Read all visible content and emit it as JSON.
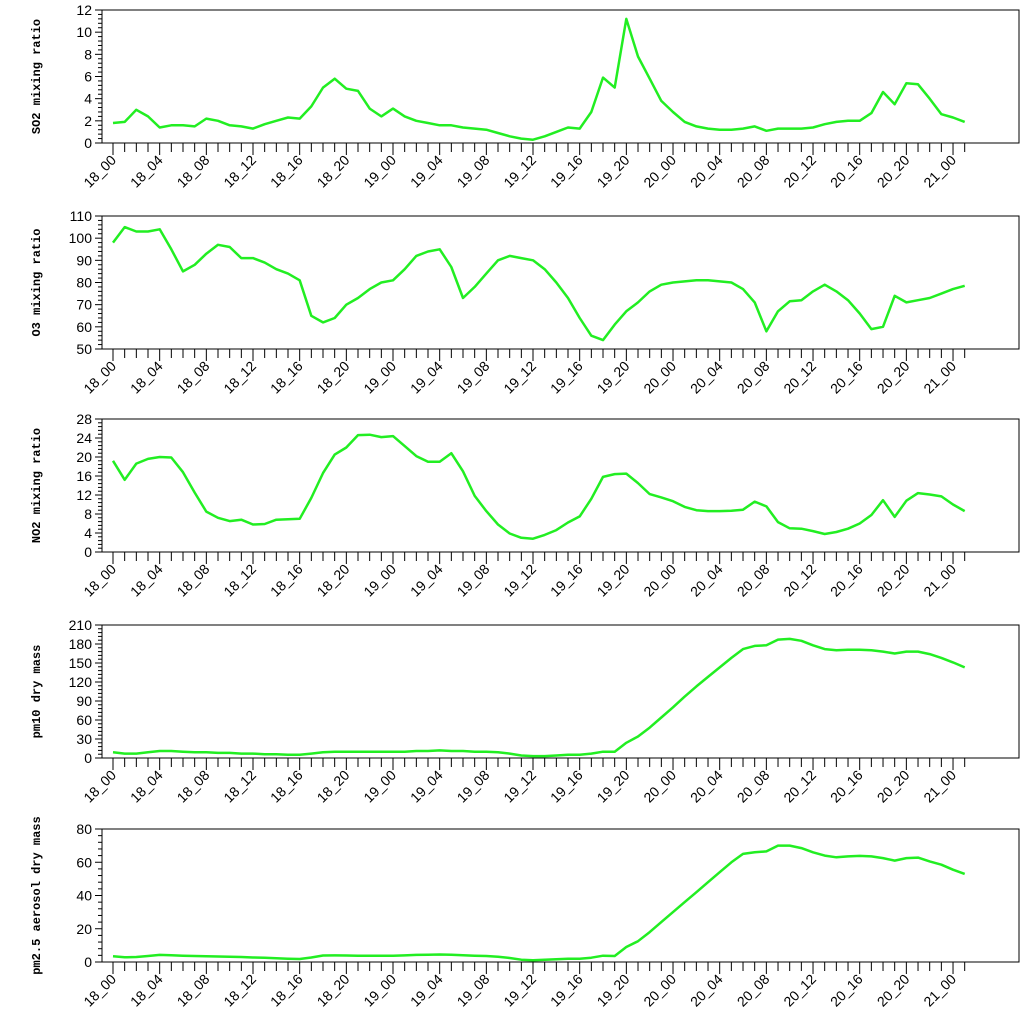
{
  "line_color": "#22ee22",
  "chart_data": [
    {
      "type": "line",
      "ylabel": "SO2 mixing ratio",
      "ylim": [
        0,
        12
      ],
      "yticks": [
        0,
        2,
        4,
        6,
        8,
        10,
        12
      ],
      "ytick_labels": [
        "0",
        "2",
        "4",
        "6",
        "8",
        "10",
        "12"
      ],
      "xtick_labels": [
        "18_00",
        "18_04",
        "18_08",
        "18_12",
        "18_16",
        "18_20",
        "19_00",
        "19_04",
        "19_08",
        "19_12",
        "19_16",
        "19_20",
        "20_00",
        "20_04",
        "20_08",
        "20_12",
        "20_16",
        "20_20",
        "21_00"
      ],
      "values": [
        1.8,
        1.9,
        3.0,
        2.4,
        1.4,
        1.6,
        1.6,
        1.5,
        2.2,
        2.0,
        1.6,
        1.5,
        1.3,
        1.7,
        2.0,
        2.3,
        2.2,
        3.3,
        5.0,
        5.8,
        4.9,
        4.7,
        3.1,
        2.4,
        3.1,
        2.4,
        2.0,
        1.8,
        1.6,
        1.6,
        1.4,
        1.3,
        1.2,
        0.9,
        0.6,
        0.4,
        0.3,
        0.6,
        1.0,
        1.4,
        1.3,
        2.8,
        5.9,
        5.0,
        11.2,
        7.8,
        5.8,
        3.8,
        2.8,
        1.9,
        1.5,
        1.3,
        1.2,
        1.2,
        1.3,
        1.5,
        1.1,
        1.3,
        1.3,
        1.3,
        1.4,
        1.7,
        1.9,
        2.0,
        2.0,
        2.7,
        4.6,
        3.5,
        5.4,
        5.3,
        4.0,
        2.6,
        2.3,
        1.9
      ]
    },
    {
      "type": "line",
      "ylabel": "O3 mixing ratio",
      "ylim": [
        50,
        110
      ],
      "yticks": [
        50,
        60,
        70,
        80,
        90,
        100,
        110
      ],
      "ytick_labels": [
        "50",
        "60",
        "70",
        "80",
        "90",
        "100",
        "110"
      ],
      "xtick_labels": [
        "18_00",
        "18_04",
        "18_08",
        "18_12",
        "18_16",
        "18_20",
        "19_00",
        "19_04",
        "19_08",
        "19_12",
        "19_16",
        "19_20",
        "20_00",
        "20_04",
        "20_08",
        "20_12",
        "20_16",
        "20_20",
        "21_00"
      ],
      "values": [
        98,
        105,
        103,
        103,
        104,
        95,
        85,
        88,
        93,
        97,
        96,
        91,
        91,
        89,
        86,
        84,
        81,
        65,
        62,
        64,
        70,
        73,
        77,
        80,
        81,
        86,
        92,
        94,
        95,
        87,
        73,
        78,
        84,
        90,
        92,
        91,
        90,
        86,
        80,
        73,
        64,
        56,
        54,
        61,
        67,
        71,
        76,
        79,
        80,
        80.5,
        81,
        81,
        80.5,
        80,
        77,
        71,
        58,
        67,
        71.5,
        72,
        76,
        79,
        76,
        72,
        66,
        59,
        60,
        74,
        71,
        72,
        73,
        75,
        77,
        78.5
      ]
    },
    {
      "type": "line",
      "ylabel": "NO2 mixing ratio",
      "ylim": [
        0,
        28
      ],
      "yticks": [
        0,
        4,
        8,
        12,
        16,
        20,
        24,
        28
      ],
      "ytick_labels": [
        "0",
        "4",
        "8",
        "12",
        "16",
        "20",
        "24",
        "28"
      ],
      "xtick_labels": [
        "18_00",
        "18_04",
        "18_08",
        "18_12",
        "18_16",
        "18_20",
        "19_00",
        "19_04",
        "19_08",
        "19_12",
        "19_16",
        "19_20",
        "20_00",
        "20_04",
        "20_08",
        "20_12",
        "20_16",
        "20_20",
        "21_00"
      ],
      "values": [
        19.2,
        15.2,
        18.6,
        19.6,
        20.0,
        19.9,
        16.8,
        12.5,
        8.5,
        7.2,
        6.5,
        6.8,
        5.8,
        5.9,
        6.8,
        6.9,
        7.0,
        11.4,
        16.6,
        20.5,
        22.0,
        24.6,
        24.7,
        24.2,
        24.4,
        22.3,
        20.2,
        19.0,
        19.0,
        20.8,
        17.0,
        11.8,
        8.6,
        5.8,
        3.9,
        3.0,
        2.8,
        3.6,
        4.6,
        6.2,
        7.5,
        11.2,
        15.8,
        16.4,
        16.5,
        14.5,
        12.2,
        11.5,
        10.7,
        9.5,
        8.8,
        8.6,
        8.6,
        8.7,
        8.9,
        10.6,
        9.6,
        6.3,
        5.0,
        4.9,
        4.4,
        3.8,
        4.2,
        4.9,
        6.0,
        7.8,
        10.9,
        7.4,
        10.8,
        12.4,
        12.1,
        11.7,
        10.0,
        8.6
      ]
    },
    {
      "type": "line",
      "ylabel": "pm10 dry mass",
      "ylim": [
        0,
        210
      ],
      "yticks": [
        0,
        30,
        60,
        90,
        120,
        150,
        180,
        210
      ],
      "ytick_labels": [
        "0",
        "30",
        "60",
        "90",
        "120",
        "150",
        "180",
        "210"
      ],
      "xtick_labels": [
        "18_00",
        "18_04",
        "18_08",
        "18_12",
        "18_16",
        "18_20",
        "19_00",
        "19_04",
        "19_08",
        "19_12",
        "19_16",
        "19_20",
        "20_00",
        "20_04",
        "20_08",
        "20_12",
        "20_16",
        "20_20",
        "21_00"
      ],
      "values": [
        9,
        7,
        7,
        9,
        11,
        11,
        10,
        9,
        9,
        8,
        8,
        7,
        7,
        6,
        6,
        5,
        5,
        7,
        9,
        10,
        10,
        10,
        10,
        10,
        10,
        10,
        11,
        11,
        12,
        11,
        11,
        10,
        10,
        9,
        7,
        4,
        3,
        3,
        4,
        5,
        5,
        7,
        10,
        10,
        24,
        34,
        48,
        64,
        80,
        97,
        113,
        128,
        143,
        158,
        172,
        177,
        178,
        187,
        188,
        185,
        178,
        172,
        170,
        171,
        171,
        170,
        168,
        165,
        168,
        168,
        164,
        158,
        151,
        143
      ]
    },
    {
      "type": "line",
      "ylabel": "pm2.5 aerosol dry mass",
      "ylim": [
        0,
        80
      ],
      "yticks": [
        0,
        20,
        40,
        60,
        80
      ],
      "ytick_labels": [
        "0",
        "20",
        "40",
        "60",
        "80"
      ],
      "xtick_labels": [
        "18_00",
        "18_04",
        "18_08",
        "18_12",
        "18_16",
        "18_20",
        "19_00",
        "19_04",
        "19_08",
        "19_12",
        "19_16",
        "19_20",
        "20_00",
        "20_04",
        "20_08",
        "20_12",
        "20_16",
        "20_20",
        "21_00"
      ],
      "values": [
        3.5,
        2.8,
        3.0,
        3.6,
        4.3,
        4.1,
        3.8,
        3.6,
        3.4,
        3.3,
        3.2,
        3.0,
        2.7,
        2.5,
        2.3,
        2.0,
        1.8,
        2.7,
        3.9,
        4.0,
        3.9,
        3.8,
        3.8,
        3.8,
        3.8,
        4.0,
        4.3,
        4.4,
        4.5,
        4.4,
        4.1,
        3.8,
        3.6,
        3.2,
        2.4,
        1.4,
        1.0,
        1.3,
        1.7,
        1.9,
        2.0,
        2.6,
        3.8,
        3.6,
        9.0,
        12.5,
        18,
        24,
        30,
        36,
        42,
        48,
        54,
        60,
        65,
        66,
        66.5,
        70,
        70,
        68.5,
        66,
        64,
        63,
        63.5,
        63.8,
        63.5,
        62.5,
        61,
        62.5,
        62.8,
        60.5,
        58.5,
        55.5,
        53
      ]
    }
  ]
}
